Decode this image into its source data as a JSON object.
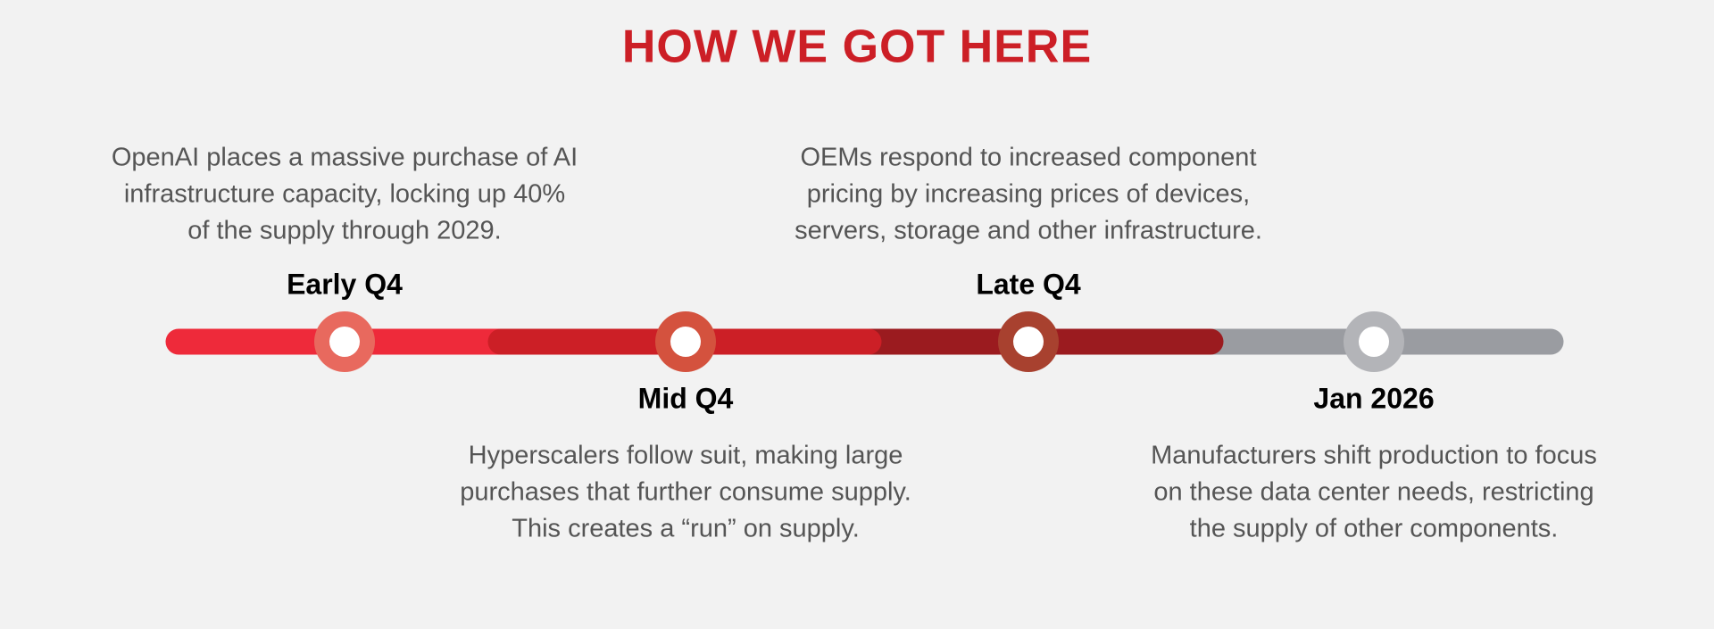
{
  "title": "HOW WE GOT HERE",
  "events": [
    {
      "label": "Early Q4",
      "description": [
        "OpenAI places a massive purchase of AI",
        "infrastructure capacity, locking up 40%",
        "of the supply through 2029."
      ]
    },
    {
      "label": "Mid Q4",
      "description": [
        "Hyperscalers follow suit, making large",
        "purchases that further consume supply.",
        "This creates a “run” on supply."
      ]
    },
    {
      "label": "Late Q4",
      "description": [
        "OEMs respond to increased component",
        "pricing by increasing prices of devices,",
        "servers, storage and other infrastructure."
      ]
    },
    {
      "label": "Jan 2026",
      "description": [
        "Manufacturers shift production to focus",
        "on these data center needs, restricting",
        "the supply of other components."
      ]
    }
  ]
}
